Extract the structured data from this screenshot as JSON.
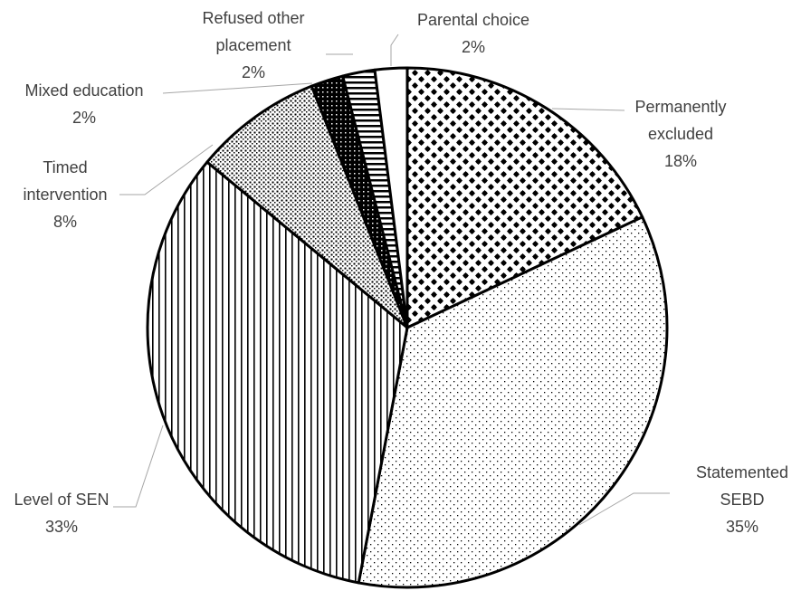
{
  "chart_data": {
    "type": "pie",
    "categories": [
      "Permanently excluded",
      "Statemented SEBD",
      "Level of SEN",
      "Timed intervention",
      "Mixed education",
      "Refused other placement",
      "Parental choice"
    ],
    "values": [
      18,
      35,
      33,
      8,
      2,
      2,
      2
    ],
    "value_labels": [
      "18%",
      "35%",
      "33%",
      "8%",
      "2%",
      "2%",
      "2%"
    ]
  }
}
